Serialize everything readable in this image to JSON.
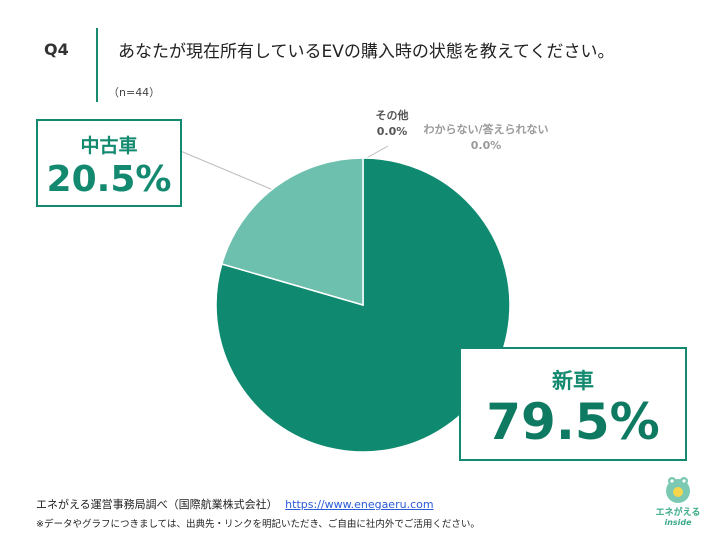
{
  "question": {
    "number": "Q4",
    "title": "あなたが現在所有しているEVの購入時の状態を教えてください。",
    "sample_size": "（n=44）"
  },
  "chart_data": {
    "type": "pie",
    "slices": [
      {
        "label": "新車",
        "value": 79.5,
        "value_label": "79.5%",
        "color": "#0f8a70"
      },
      {
        "label": "中古車",
        "value": 20.5,
        "value_label": "20.5%",
        "color": "#6dbfae"
      },
      {
        "label": "その他",
        "value": 0.0,
        "value_label": "0.0%",
        "color": "#555555"
      },
      {
        "label": "わからない/答えられない",
        "value": 0.0,
        "value_label": "0.0%",
        "color": "#9a9a9a"
      }
    ],
    "start_angle_deg": 0,
    "direction": "clockwise"
  },
  "footer": {
    "source": "エネがえる運営事務局調べ（国際航業株式会社）",
    "url": "https://www.enegaeru.com",
    "note": "※データやグラフにつきましては、出典先・リンクを明記いただき、ご自由に社内外でご活用ください。"
  },
  "logo": {
    "text": "エネがえる",
    "subtext": "inside"
  }
}
